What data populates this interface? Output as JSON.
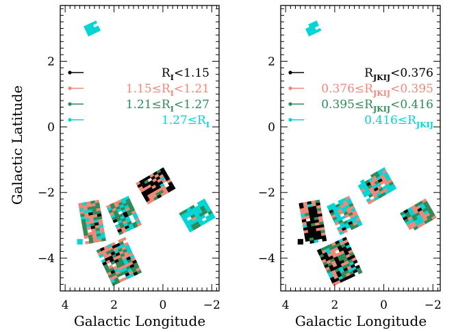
{
  "figure": {
    "ylabel": "Galactic Latitude",
    "xlabel": "Galactic Longitude"
  },
  "chart_data": [
    {
      "type": "scatter",
      "panel": "left",
      "xlabel": "Galactic Longitude",
      "ylabel": "Galactic Latitude",
      "xlim": [
        4.2,
        -2.3
      ],
      "ylim": [
        -5.0,
        3.7
      ],
      "x_ticks": [
        4,
        2,
        0,
        -2
      ],
      "y_ticks": [
        2,
        0,
        -2,
        -4
      ],
      "x_tick_labels": [
        "4",
        "2",
        "0",
        "−2"
      ],
      "y_tick_labels": [
        "2",
        "0",
        "−2",
        "−4"
      ],
      "grid": false,
      "legend_position": "upper-right",
      "legend": [
        {
          "parts": [
            [
              "R",
              ""
            ],
            [
              "I",
              "sub"
            ],
            [
              "<1.15",
              ""
            ]
          ],
          "color": "#000000"
        },
        {
          "parts": [
            [
              "1.15≤R",
              ""
            ],
            [
              "I",
              "sub"
            ],
            [
              "<1.21",
              ""
            ]
          ],
          "color": "#f08878"
        },
        {
          "parts": [
            [
              "1.21≤R",
              ""
            ],
            [
              "I",
              "sub"
            ],
            [
              "<1.27",
              ""
            ]
          ],
          "color": "#2e8b57"
        },
        {
          "parts": [
            [
              "1.27≤R",
              ""
            ],
            [
              "I",
              "sub"
            ]
          ],
          "color": "#00d5d5"
        }
      ],
      "fields": [
        {
          "center": [
            2.9,
            3.0
          ],
          "size": [
            0.55,
            0.45
          ],
          "angle": 25,
          "weights": [
            0,
            0,
            0,
            1
          ]
        },
        {
          "center": [
            0.3,
            -1.8
          ],
          "size": [
            1.3,
            1.0
          ],
          "angle": 30,
          "weights": [
            0.55,
            0.35,
            0.05,
            0.05
          ]
        },
        {
          "center": [
            -1.4,
            -2.7
          ],
          "size": [
            1.2,
            0.9
          ],
          "angle": 30,
          "weights": [
            0,
            0.05,
            0.2,
            0.75
          ]
        },
        {
          "center": [
            2.9,
            -2.9
          ],
          "size": [
            0.85,
            1.7
          ],
          "angle": 10,
          "weights": [
            0.08,
            0.4,
            0.35,
            0.17
          ]
        },
        {
          "center": [
            3.4,
            -3.5
          ],
          "size": [
            0.22,
            0.22
          ],
          "angle": 0,
          "weights": [
            0,
            0,
            0,
            1
          ]
        },
        {
          "center": [
            1.6,
            -2.7
          ],
          "size": [
            1.0,
            1.3
          ],
          "angle": 25,
          "weights": [
            0.05,
            0.25,
            0.3,
            0.4
          ]
        },
        {
          "center": [
            1.8,
            -4.1
          ],
          "size": [
            1.3,
            1.6
          ],
          "angle": 25,
          "weights": [
            0.12,
            0.35,
            0.33,
            0.2
          ]
        }
      ]
    },
    {
      "type": "scatter",
      "panel": "right",
      "xlabel": "Galactic Longitude",
      "ylabel": "",
      "xlim": [
        4.2,
        -2.3
      ],
      "ylim": [
        -5.0,
        3.7
      ],
      "x_ticks": [
        4,
        2,
        0,
        -2
      ],
      "y_ticks": [
        2,
        0,
        -2,
        -4
      ],
      "x_tick_labels": [
        "4",
        "2",
        "0",
        "−2"
      ],
      "y_tick_labels": [
        "2",
        "0",
        "−2",
        "−4"
      ],
      "grid": false,
      "legend_position": "upper-right",
      "legend": [
        {
          "parts": [
            [
              "R",
              ""
            ],
            [
              "JKIJ",
              "sub"
            ],
            [
              "<0.376",
              ""
            ]
          ],
          "color": "#000000"
        },
        {
          "parts": [
            [
              "0.376≤R",
              ""
            ],
            [
              "JKIJ",
              "sub"
            ],
            [
              "<0.395",
              ""
            ]
          ],
          "color": "#f08878"
        },
        {
          "parts": [
            [
              "0.395≤R",
              ""
            ],
            [
              "JKIJ",
              "sub"
            ],
            [
              "<0.416",
              ""
            ]
          ],
          "color": "#2e8b57"
        },
        {
          "parts": [
            [
              "0.416≤R",
              ""
            ],
            [
              "JKIJ",
              "sub"
            ]
          ],
          "color": "#00d5d5"
        }
      ],
      "fields": [
        {
          "center": [
            2.9,
            3.0
          ],
          "size": [
            0.55,
            0.45
          ],
          "angle": 25,
          "weights": [
            0,
            0,
            0,
            1
          ]
        },
        {
          "center": [
            0.3,
            -1.8
          ],
          "size": [
            1.3,
            1.0
          ],
          "angle": 30,
          "weights": [
            0.05,
            0.3,
            0.15,
            0.5
          ]
        },
        {
          "center": [
            -1.4,
            -2.7
          ],
          "size": [
            1.2,
            0.9
          ],
          "angle": 30,
          "weights": [
            0.05,
            0.35,
            0.4,
            0.2
          ]
        },
        {
          "center": [
            2.9,
            -2.9
          ],
          "size": [
            0.85,
            1.7
          ],
          "angle": 10,
          "weights": [
            0.45,
            0.3,
            0.15,
            0.1
          ]
        },
        {
          "center": [
            3.4,
            -3.5
          ],
          "size": [
            0.22,
            0.22
          ],
          "angle": 0,
          "weights": [
            1,
            0,
            0,
            0
          ]
        },
        {
          "center": [
            1.6,
            -2.7
          ],
          "size": [
            1.0,
            1.3
          ],
          "angle": 25,
          "weights": [
            0.05,
            0.2,
            0.3,
            0.45
          ]
        },
        {
          "center": [
            1.8,
            -4.1
          ],
          "size": [
            1.3,
            1.6
          ],
          "angle": 25,
          "weights": [
            0.35,
            0.25,
            0.25,
            0.15
          ]
        }
      ]
    }
  ]
}
